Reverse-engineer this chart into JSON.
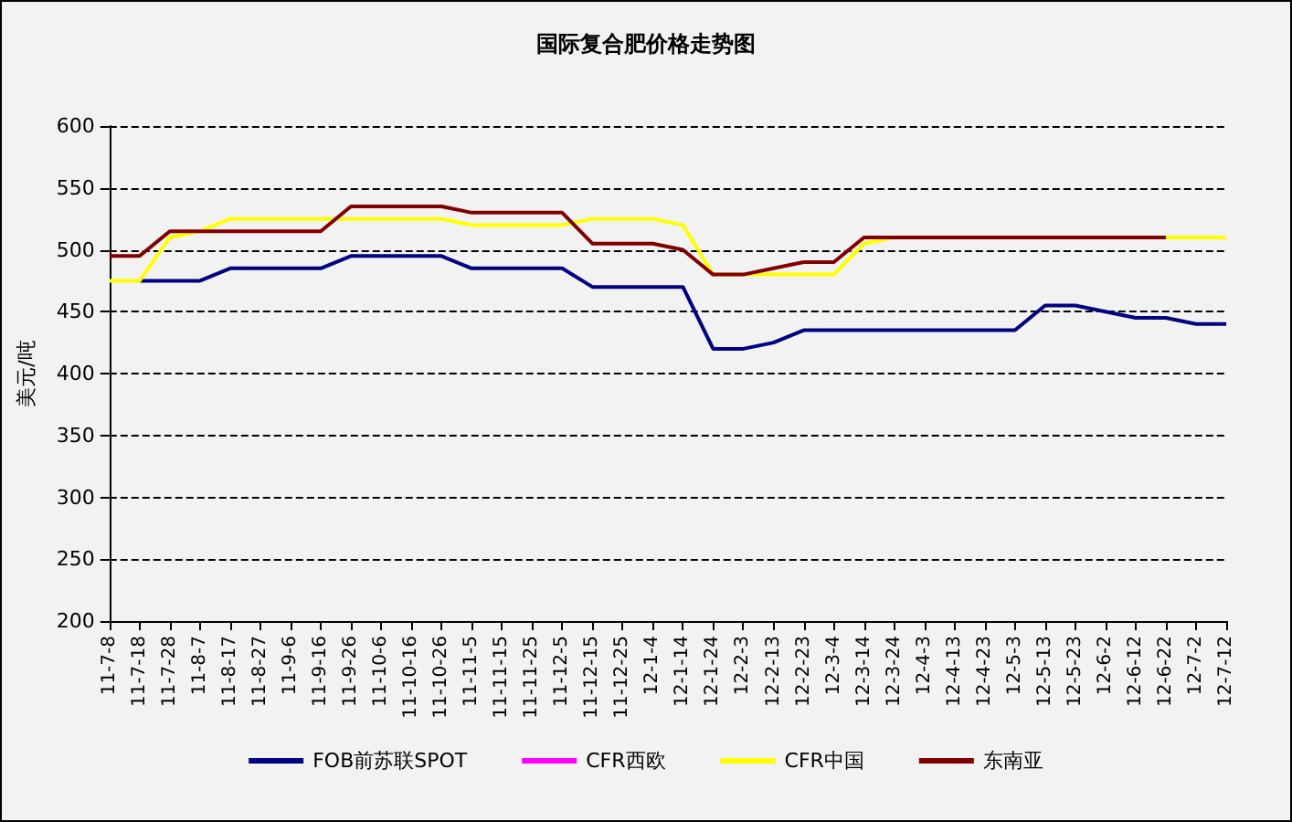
{
  "chart_data": {
    "type": "line",
    "title": "国际复合肥价格走势图",
    "ylabel": "美元/吨",
    "categories": [
      "11-7-8",
      "11-7-18",
      "11-7-28",
      "11-8-7",
      "11-8-17",
      "11-8-27",
      "11-9-6",
      "11-9-16",
      "11-9-26",
      "11-10-6",
      "11-10-16",
      "11-10-26",
      "11-11-5",
      "11-11-15",
      "11-11-25",
      "11-12-5",
      "11-12-15",
      "11-12-25",
      "12-1-4",
      "12-1-14",
      "12-1-24",
      "12-2-3",
      "12-2-13",
      "12-2-23",
      "12-3-4",
      "12-3-14",
      "12-3-24",
      "12-4-3",
      "12-4-13",
      "12-4-23",
      "12-5-3",
      "12-5-13",
      "12-5-23",
      "12-6-2",
      "12-6-12",
      "12-6-22",
      "12-7-2",
      "12-7-12"
    ],
    "series": [
      {
        "name": "FOB前苏联SPOT",
        "color": "#000080",
        "values": [
          null,
          475,
          475,
          475,
          485,
          485,
          485,
          485,
          495,
          495,
          495,
          495,
          485,
          485,
          485,
          485,
          470,
          470,
          470,
          470,
          420,
          420,
          425,
          435,
          435,
          435,
          435,
          435,
          435,
          435,
          435,
          455,
          455,
          450,
          445,
          445,
          440,
          440
        ]
      },
      {
        "name": "CFR西欧",
        "color": "#ff00ff",
        "values": [
          null,
          null,
          null,
          null,
          null,
          null,
          null,
          null,
          null,
          null,
          null,
          null,
          null,
          null,
          null,
          null,
          null,
          null,
          null,
          null,
          null,
          null,
          null,
          null,
          null,
          null,
          null,
          null,
          null,
          null,
          null,
          null,
          null,
          null,
          null,
          null,
          null,
          null
        ]
      },
      {
        "name": "CFR中国",
        "color": "#ffff00",
        "values": [
          475,
          475,
          510,
          515,
          525,
          525,
          525,
          525,
          525,
          525,
          525,
          525,
          520,
          520,
          520,
          520,
          525,
          525,
          525,
          520,
          480,
          480,
          480,
          480,
          480,
          505,
          510,
          null,
          null,
          null,
          null,
          null,
          null,
          null,
          null,
          510,
          510,
          510
        ]
      },
      {
        "name": "东南亚",
        "color": "#800000",
        "values": [
          495,
          495,
          515,
          515,
          515,
          515,
          515,
          515,
          535,
          535,
          535,
          535,
          530,
          530,
          530,
          530,
          505,
          505,
          505,
          500,
          480,
          480,
          485,
          490,
          490,
          510,
          510,
          510,
          510,
          510,
          510,
          510,
          510,
          510,
          510,
          510,
          null,
          null
        ]
      }
    ],
    "ylim": [
      200,
      600
    ],
    "yticks": [
      200,
      250,
      300,
      350,
      400,
      450,
      500,
      550,
      600
    ],
    "grid": "y",
    "legend": "bottom",
    "marker": "none",
    "line_style": "solid"
  }
}
